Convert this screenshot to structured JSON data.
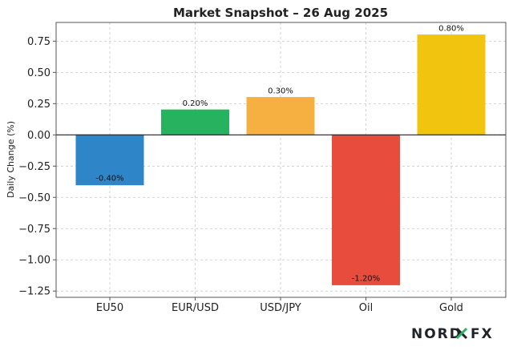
{
  "chart_data": {
    "type": "bar",
    "title": "Market Snapshot – 26 Aug 2025",
    "xlabel": "",
    "ylabel": "Daily Change (%)",
    "categories": [
      "EU50",
      "EUR/USD",
      "USD/JPY",
      "Oil",
      "Gold"
    ],
    "values": [
      -0.4,
      0.2,
      0.3,
      -1.2,
      0.8
    ],
    "value_labels": [
      "-0.40%",
      "0.20%",
      "0.30%",
      "-1.20%",
      "0.80%"
    ],
    "colors": [
      "#2e86c8",
      "#27b25f",
      "#f5b041",
      "#e74c3c",
      "#f1c40f"
    ],
    "ylim": [
      -1.3,
      0.9
    ],
    "yticks": [
      0.75,
      0.5,
      0.25,
      0.0,
      -0.25,
      -0.5,
      -0.75,
      -1.0,
      -1.25
    ],
    "ytick_labels": [
      "0.75",
      "0.50",
      "0.25",
      "0.00",
      "−0.25",
      "−0.50",
      "−0.75",
      "−1.00",
      "−1.25"
    ],
    "grid": true,
    "legend": false
  },
  "brand": {
    "left_text": "NORD",
    "right_text": "FX",
    "x_color": "#27b25f"
  }
}
